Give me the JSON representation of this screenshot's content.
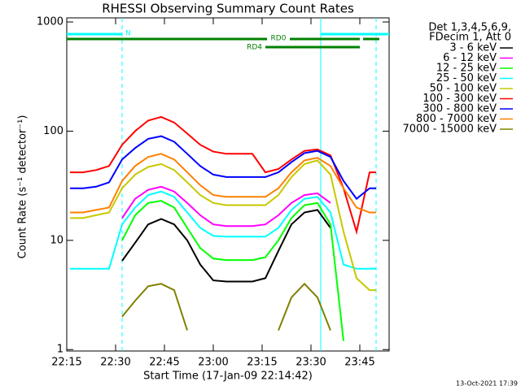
{
  "chart_data": {
    "type": "line",
    "title": "RHESSI Observing Summary Count Rates",
    "x_label": "Start Time (17-Jan-09 22:14:42)",
    "y_label": "Count Rate (s⁻¹ detector⁻¹)",
    "legend_header": [
      "Det 1,3,4,5,6,9,",
      "FDecim 1, Att 0"
    ],
    "timestamp": "13-Oct-2021 17:39",
    "log_y": true,
    "xlim": [
      "22:15",
      "23:54"
    ],
    "xticks": [
      "22:15",
      "22:30",
      "22:45",
      "23:00",
      "23:15",
      "23:30",
      "23:45"
    ],
    "ylim": [
      0.97,
      1090
    ],
    "yticks": [
      1,
      10,
      100,
      1000
    ],
    "x": [
      "22:16",
      "22:20",
      "22:24",
      "22:28",
      "22:32",
      "22:36",
      "22:40",
      "22:44",
      "22:48",
      "22:52",
      "22:56",
      "23:00",
      "23:04",
      "23:08",
      "23:12",
      "23:16",
      "23:20",
      "23:24",
      "23:28",
      "23:32",
      "23:36",
      "23:40",
      "23:44",
      "23:48",
      "23:50"
    ],
    "series": [
      {
        "name": "3 - 6 keV",
        "color": "#000000",
        "values": [
          null,
          null,
          null,
          null,
          6.5,
          9.5,
          14,
          15.7,
          14,
          10,
          6,
          4.3,
          4.2,
          4.2,
          4.2,
          4.5,
          8,
          14,
          18,
          19,
          13,
          null,
          null,
          null,
          null
        ]
      },
      {
        "name": "6 - 12 keV",
        "color": "#ff00ff",
        "values": [
          null,
          null,
          null,
          null,
          16,
          24,
          29,
          31,
          28,
          22,
          17,
          14,
          13.5,
          13.5,
          13.5,
          14,
          17,
          22,
          26,
          27,
          22,
          null,
          null,
          null,
          null
        ]
      },
      {
        "name": "12 - 25 keV",
        "color": "#00ff00",
        "values": [
          null,
          null,
          null,
          null,
          10,
          17,
          22,
          23,
          20,
          13,
          8.5,
          6.8,
          6.6,
          6.6,
          6.6,
          7,
          10,
          16,
          21,
          22,
          14,
          1.2,
          null,
          null,
          null
        ]
      },
      {
        "name": "25 - 50 keV",
        "color": "#00ffff",
        "values": [
          5.5,
          5.5,
          5.5,
          5.5,
          14,
          20,
          26,
          28,
          25,
          18,
          13,
          11,
          10.8,
          10.8,
          10.8,
          10.8,
          13,
          19,
          24,
          25,
          18,
          6,
          5.5,
          5.5,
          5.5
        ]
      },
      {
        "name": "50 - 100 keV",
        "color": "#c8c800",
        "values": [
          16,
          16,
          17,
          18,
          30,
          40,
          47,
          50,
          44,
          34,
          26,
          22,
          21,
          21,
          21,
          21,
          26,
          38,
          50,
          54,
          40,
          12,
          4.5,
          3.5,
          3.5
        ]
      },
      {
        "name": "100 - 300 keV",
        "color": "#ff0000",
        "values": [
          42,
          42,
          44,
          48,
          75,
          100,
          125,
          135,
          120,
          95,
          75,
          65,
          62,
          62,
          62,
          42,
          45,
          55,
          66,
          68,
          60,
          30,
          12,
          42,
          42
        ]
      },
      {
        "name": "300 - 800 keV",
        "color": "#0000ff",
        "values": [
          30,
          30,
          31,
          34,
          55,
          70,
          85,
          90,
          80,
          62,
          48,
          40,
          38,
          38,
          38,
          38,
          42,
          52,
          63,
          66,
          58,
          35,
          24,
          30,
          30
        ]
      },
      {
        "name": "800 - 7000 keV",
        "color": "#ff8000",
        "values": [
          18,
          18,
          19,
          20,
          35,
          48,
          58,
          62,
          55,
          42,
          32,
          26,
          25,
          25,
          25,
          25,
          30,
          42,
          54,
          57,
          48,
          30,
          20,
          18,
          18
        ]
      },
      {
        "name": "7000 - 15000 keV",
        "color": "#808000",
        "values": [
          null,
          null,
          null,
          null,
          2,
          2.8,
          3.8,
          4,
          3.5,
          1.5,
          null,
          null,
          null,
          null,
          null,
          null,
          1.5,
          3,
          4,
          3,
          1.5,
          null,
          null,
          null,
          null
        ]
      }
    ],
    "flags": [
      {
        "label": "N",
        "color": "#00ffff",
        "segments": [
          [
            "22:15",
            "22:32"
          ],
          [
            "23:33",
            "23:54"
          ]
        ]
      },
      {
        "label": "RD0",
        "color": "#008000",
        "segments": [
          [
            "22:15",
            "23:45"
          ],
          [
            "23:46",
            "23:51"
          ]
        ]
      },
      {
        "label": "RD4",
        "color": "#008000",
        "segments": [
          [
            "23:16",
            "23:45"
          ]
        ]
      }
    ],
    "vlines": [
      {
        "x": "22:32",
        "color": "#00ffff",
        "dashed": true
      },
      {
        "x": "23:33",
        "color": "#00ffff",
        "dashed": false
      },
      {
        "x": "23:50",
        "color": "#00ffff",
        "dashed": true
      }
    ]
  }
}
